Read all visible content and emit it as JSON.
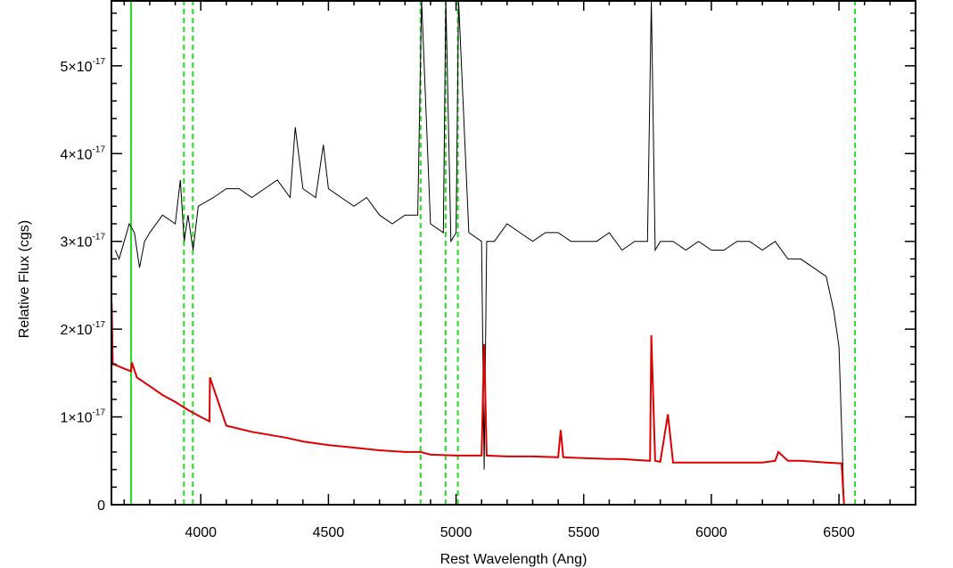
{
  "chart_data": {
    "type": "line",
    "title": "",
    "xlabel": "Rest Wavelength (Ang)",
    "ylabel": "Relative Flux (cgs)",
    "xlim": [
      3650,
      6800
    ],
    "ylim": [
      0,
      5.75e-17
    ],
    "grid": false,
    "x_ticks": [
      {
        "value": 4000,
        "label": "4000"
      },
      {
        "value": 4500,
        "label": "4500"
      },
      {
        "value": 5000,
        "label": "5000"
      },
      {
        "value": 5500,
        "label": "5500"
      },
      {
        "value": 6000,
        "label": "6000"
      },
      {
        "value": 6500,
        "label": "6500"
      }
    ],
    "y_ticks": [
      {
        "value": 0,
        "mantissa": "0",
        "exp": ""
      },
      {
        "value": 1e-17,
        "mantissa": "1×10",
        "exp": "-17"
      },
      {
        "value": 2e-17,
        "mantissa": "2×10",
        "exp": "-17"
      },
      {
        "value": 3e-17,
        "mantissa": "3×10",
        "exp": "-17"
      },
      {
        "value": 4e-17,
        "mantissa": "4×10",
        "exp": "-17"
      },
      {
        "value": 5e-17,
        "mantissa": "5×10",
        "exp": "-17"
      }
    ],
    "colors": {
      "observed": "#000000",
      "model": "#dd0000",
      "lines": "#22dd22"
    },
    "reference_lines": [
      {
        "x": 3727,
        "style": "solid"
      },
      {
        "x": 3934,
        "style": "dashed"
      },
      {
        "x": 3969,
        "style": "dashed"
      },
      {
        "x": 4861,
        "style": "dashed"
      },
      {
        "x": 4959,
        "style": "dashed"
      },
      {
        "x": 5007,
        "style": "dashed"
      },
      {
        "x": 6563,
        "style": "dashed"
      }
    ],
    "series": [
      {
        "role": "observed",
        "color": "#000000",
        "x": [
          3665,
          3680,
          3700,
          3720,
          3740,
          3760,
          3780,
          3800,
          3850,
          3900,
          3920,
          3935,
          3950,
          3970,
          3990,
          4050,
          4100,
          4150,
          4200,
          4250,
          4300,
          4350,
          4370,
          4400,
          4450,
          4480,
          4500,
          4550,
          4600,
          4650,
          4700,
          4750,
          4800,
          4850,
          4865,
          4900,
          4950,
          4960,
          4980,
          5000,
          5010,
          5050,
          5100,
          5110,
          5120,
          5150,
          5200,
          5250,
          5300,
          5350,
          5400,
          5450,
          5500,
          5550,
          5600,
          5650,
          5700,
          5750,
          5765,
          5780,
          5800,
          5850,
          5900,
          5950,
          6000,
          6050,
          6100,
          6150,
          6200,
          6250,
          6300,
          6350,
          6400,
          6450,
          6480,
          6500,
          6520
        ],
        "y": [
          2.9e-17,
          2.8e-17,
          3e-17,
          3.2e-17,
          3.1e-17,
          2.7e-17,
          3e-17,
          3.1e-17,
          3.3e-17,
          3.2e-17,
          3.7e-17,
          3e-17,
          3.3e-17,
          2.9e-17,
          3.4e-17,
          3.5e-17,
          3.6e-17,
          3.6e-17,
          3.5e-17,
          3.6e-17,
          3.7e-17,
          3.5e-17,
          4.3e-17,
          3.6e-17,
          3.5e-17,
          4.1e-17,
          3.6e-17,
          3.5e-17,
          3.4e-17,
          3.5e-17,
          3.3e-17,
          3.2e-17,
          3.3e-17,
          3.3e-17,
          5.75e-17,
          3.2e-17,
          3.1e-17,
          5.75e-17,
          3e-17,
          3.1e-17,
          5.75e-17,
          3.1e-17,
          3e-17,
          4e-18,
          3e-17,
          3e-17,
          3.2e-17,
          3.1e-17,
          3e-17,
          3.1e-17,
          3.1e-17,
          3e-17,
          3e-17,
          3e-17,
          3.1e-17,
          2.9e-17,
          3e-17,
          3e-17,
          5.75e-17,
          2.9e-17,
          3e-17,
          3e-17,
          2.9e-17,
          3e-17,
          2.9e-17,
          2.9e-17,
          3e-17,
          3e-17,
          2.9e-17,
          3e-17,
          2.8e-17,
          2.8e-17,
          2.7e-17,
          2.6e-17,
          2.2e-17,
          1.8e-17,
          0
        ]
      },
      {
        "role": "model",
        "color": "#dd0000",
        "x": [
          3650,
          3651,
          3655,
          3660,
          3700,
          3727,
          3730,
          3750,
          3800,
          3850,
          3900,
          3950,
          4000,
          4034,
          4036,
          4100,
          4200,
          4300,
          4340,
          4400,
          4500,
          4600,
          4700,
          4800,
          4861,
          4900,
          5000,
          5100,
          5110,
          5120,
          5200,
          5300,
          5400,
          5410,
          5420,
          5500,
          5600,
          5650,
          5700,
          5760,
          5765,
          5780,
          5800,
          5830,
          5850,
          5900,
          6000,
          6100,
          6200,
          6250,
          6263,
          6300,
          6350,
          6400,
          6450,
          6510,
          6520,
          6800
        ],
        "y": [
          0,
          2.3e-17,
          1.62e-17,
          1.6e-17,
          1.55e-17,
          1.52e-17,
          1.62e-17,
          1.45e-17,
          1.35e-17,
          1.25e-17,
          1.17e-17,
          1.08e-17,
          1e-17,
          9.5e-18,
          1.45e-17,
          9e-18,
          8.3e-18,
          7.8e-18,
          7.6e-18,
          7.2e-18,
          6.8e-18,
          6.5e-18,
          6.2e-18,
          6e-18,
          6e-18,
          5.7e-18,
          5.6e-18,
          5.6e-18,
          1.83e-17,
          5.6e-18,
          5.5e-18,
          5.5e-18,
          5.4e-18,
          8.5e-18,
          5.4e-18,
          5.3e-18,
          5.2e-18,
          5.2e-18,
          5.1e-18,
          5e-18,
          1.93e-17,
          5e-18,
          4.9e-18,
          1.03e-17,
          4.8e-18,
          4.8e-18,
          4.8e-18,
          4.8e-18,
          4.8e-18,
          5e-18,
          6e-18,
          5e-18,
          5e-18,
          4.9e-18,
          4.8e-18,
          4.7e-18,
          0,
          0
        ]
      }
    ]
  }
}
